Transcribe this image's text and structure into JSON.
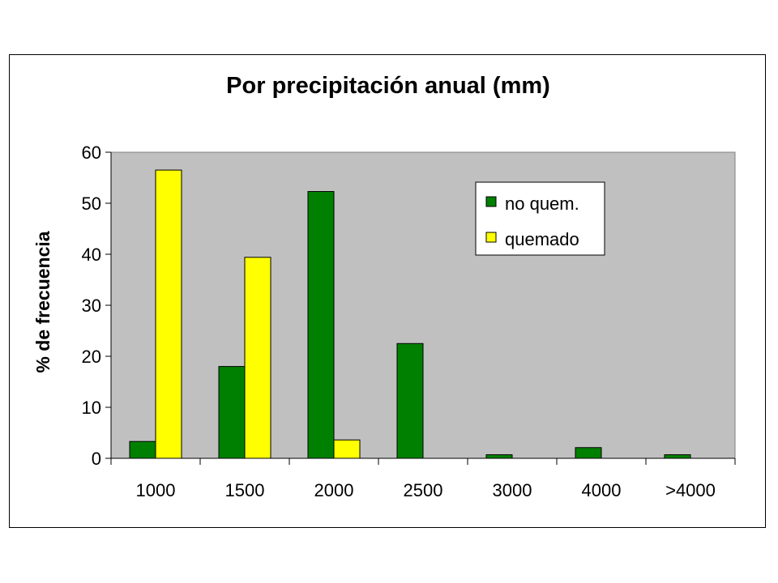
{
  "chart_data": {
    "type": "bar",
    "title": "Por precipitación anual (mm)",
    "xlabel": "",
    "ylabel": "% de frecuencia",
    "categories": [
      "1000",
      "1500",
      "2000",
      "2500",
      "3000",
      "4000",
      ">4000"
    ],
    "series": [
      {
        "name": "no quem.",
        "color": "#008000",
        "values": [
          3.3,
          18.0,
          52.3,
          22.5,
          0.7,
          2.1,
          0.7
        ]
      },
      {
        "name": "quemado",
        "color": "#FFFF00",
        "values": [
          56.5,
          39.4,
          3.6,
          0,
          0,
          0,
          0
        ]
      }
    ],
    "ylim": [
      0,
      60
    ],
    "yticks": [
      "0",
      "10",
      "20",
      "30",
      "40",
      "50",
      "60"
    ],
    "grid": false,
    "plot_background": "#C0C0C0",
    "legend_position": "top-right"
  }
}
